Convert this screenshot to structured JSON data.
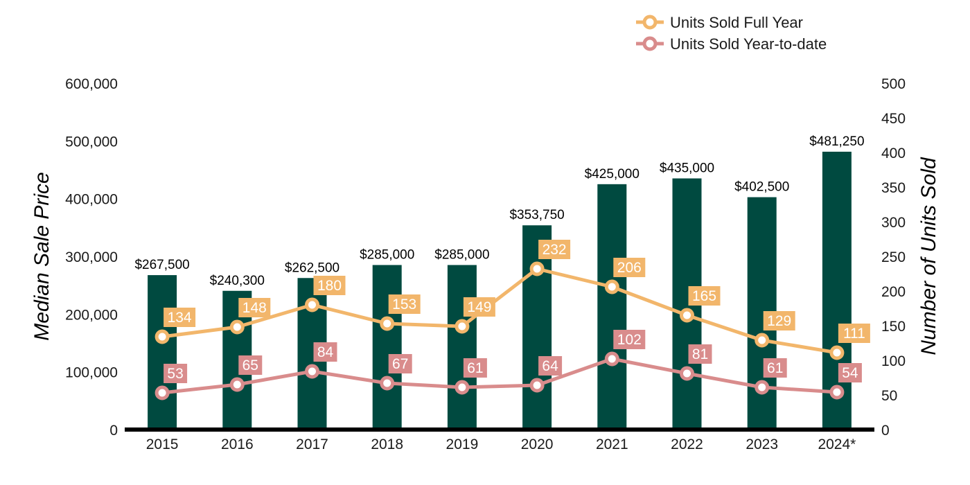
{
  "chart_data": {
    "type": "bar",
    "categories": [
      "2015",
      "2016",
      "2017",
      "2018",
      "2019",
      "2020",
      "2021",
      "2022",
      "2023",
      "2024*"
    ],
    "bars": {
      "values": [
        267500,
        240300,
        262500,
        285000,
        285000,
        353750,
        425000,
        435000,
        402500,
        481250
      ],
      "labels": [
        "$267,500",
        "$240,300",
        "$262,500",
        "$285,000",
        "$285,000",
        "$353,750",
        "$425,000",
        "$435,000",
        "$402,500",
        "$481,250"
      ],
      "color": "#004a40"
    },
    "series": [
      {
        "name": "Units Sold Full Year",
        "type": "line",
        "axis": "right",
        "color": "#f2b66b",
        "values": [
          134,
          148,
          180,
          153,
          149,
          232,
          206,
          165,
          129,
          111
        ]
      },
      {
        "name": "Units Sold Year-to-date",
        "type": "line",
        "axis": "right",
        "color": "#d98c8c",
        "values": [
          53,
          65,
          84,
          67,
          61,
          64,
          102,
          81,
          61,
          54
        ]
      }
    ],
    "ylabel": "Median Sale Price",
    "y2label": "Number of Units Sold",
    "ylim": [
      0,
      600000
    ],
    "y2lim": [
      0,
      500
    ],
    "yticks": [
      "0",
      "100,000",
      "200,000",
      "300,000",
      "400,000",
      "500,000",
      "600,000"
    ],
    "y2ticks": [
      "0",
      "50",
      "100",
      "150",
      "200",
      "250",
      "300",
      "350",
      "400",
      "450",
      "500"
    ],
    "grid": false,
    "legend_position": "top-right"
  }
}
